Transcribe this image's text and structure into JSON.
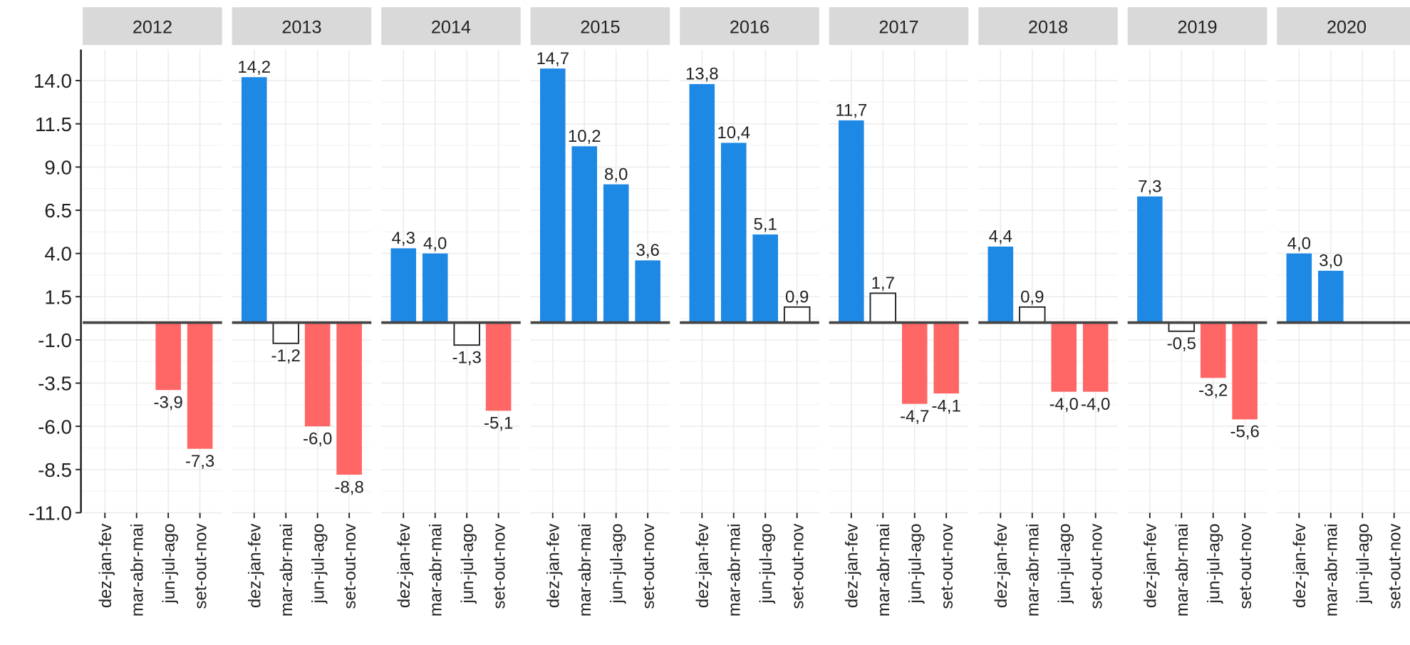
{
  "chart_data": {
    "type": "bar",
    "ylim": [
      -11.0,
      15.8
    ],
    "yticks": [
      {
        "value": 14,
        "label": "14.0"
      },
      {
        "value": 11.5,
        "label": "11.5"
      },
      {
        "value": 9,
        "label": "9.0"
      },
      {
        "value": 6.5,
        "label": "6.5"
      },
      {
        "value": 4,
        "label": "4.0"
      },
      {
        "value": 1.5,
        "label": "1.5"
      },
      {
        "value": -1,
        "label": "-1.0"
      },
      {
        "value": -3.5,
        "label": "-3.5"
      },
      {
        "value": -6,
        "label": "-6.0"
      },
      {
        "value": -8.5,
        "label": "-8.5"
      },
      {
        "value": -11,
        "label": "-11.0"
      }
    ],
    "grid": true,
    "facets": [
      {
        "title": "2012",
        "categories": [
          "dez-jan-fev",
          "mar-abr-mai",
          "jun-jul-ago",
          "set-out-nov"
        ],
        "values": [
          null,
          null,
          -3.9,
          -7.3
        ],
        "value_labels": [
          null,
          null,
          "-3,9",
          "-7,3"
        ],
        "colors": [
          null,
          null,
          "#ff6666",
          "#ff6666"
        ]
      },
      {
        "title": "2013",
        "categories": [
          "dez-jan-fev",
          "mar-abr-mai",
          "jun-jul-ago",
          "set-out-nov"
        ],
        "values": [
          14.2,
          -1.2,
          -6.0,
          -8.8
        ],
        "value_labels": [
          "14,2",
          "-1,2",
          "-6,0",
          "-8,8"
        ],
        "colors": [
          "#1e88e5",
          "#ffffff",
          "#ff6666",
          "#ff6666"
        ]
      },
      {
        "title": "2014",
        "categories": [
          "dez-jan-fev",
          "mar-abr-mai",
          "jun-jul-ago",
          "set-out-nov"
        ],
        "values": [
          4.3,
          4.0,
          -1.3,
          -5.1
        ],
        "value_labels": [
          "4,3",
          "4,0",
          "-1,3",
          "-5,1"
        ],
        "colors": [
          "#1e88e5",
          "#1e88e5",
          "#ffffff",
          "#ff6666"
        ]
      },
      {
        "title": "2015",
        "categories": [
          "dez-jan-fev",
          "mar-abr-mai",
          "jun-jul-ago",
          "set-out-nov"
        ],
        "values": [
          14.7,
          10.2,
          8.0,
          3.6
        ],
        "value_labels": [
          "14,7",
          "10,2",
          "8,0",
          "3,6"
        ],
        "colors": [
          "#1e88e5",
          "#1e88e5",
          "#1e88e5",
          "#1e88e5"
        ]
      },
      {
        "title": "2016",
        "categories": [
          "dez-jan-fev",
          "mar-abr-mai",
          "jun-jul-ago",
          "set-out-nov"
        ],
        "values": [
          13.8,
          10.4,
          5.1,
          0.9
        ],
        "value_labels": [
          "13,8",
          "10,4",
          "5,1",
          "0,9"
        ],
        "colors": [
          "#1e88e5",
          "#1e88e5",
          "#1e88e5",
          "#ffffff"
        ]
      },
      {
        "title": "2017",
        "categories": [
          "dez-jan-fev",
          "mar-abr-mai",
          "jun-jul-ago",
          "set-out-nov"
        ],
        "values": [
          11.7,
          1.7,
          -4.7,
          -4.1
        ],
        "value_labels": [
          "11,7",
          "1,7",
          "-4,7",
          "-4,1"
        ],
        "colors": [
          "#1e88e5",
          "#ffffff",
          "#ff6666",
          "#ff6666"
        ]
      },
      {
        "title": "2018",
        "categories": [
          "dez-jan-fev",
          "mar-abr-mai",
          "jun-jul-ago",
          "set-out-nov"
        ],
        "values": [
          4.4,
          0.9,
          -4.0,
          -4.0
        ],
        "value_labels": [
          "4,4",
          "0,9",
          "-4,0",
          "-4,0"
        ],
        "colors": [
          "#1e88e5",
          "#ffffff",
          "#ff6666",
          "#ff6666"
        ]
      },
      {
        "title": "2019",
        "categories": [
          "dez-jan-fev",
          "mar-abr-mai",
          "jun-jul-ago",
          "set-out-nov"
        ],
        "values": [
          7.3,
          -0.5,
          -3.2,
          -5.6
        ],
        "value_labels": [
          "7,3",
          "-0,5",
          "-3,2",
          "-5,6"
        ],
        "colors": [
          "#1e88e5",
          "#ffffff",
          "#ff6666",
          "#ff6666"
        ]
      },
      {
        "title": "2020",
        "categories": [
          "dez-jan-fev",
          "mar-abr-mai",
          "jun-jul-ago",
          "set-out-nov"
        ],
        "values": [
          4.0,
          3.0,
          null,
          null
        ],
        "value_labels": [
          "4,0",
          "3,0",
          null,
          null
        ],
        "colors": [
          "#1e88e5",
          "#1e88e5",
          null,
          null
        ]
      }
    ]
  }
}
